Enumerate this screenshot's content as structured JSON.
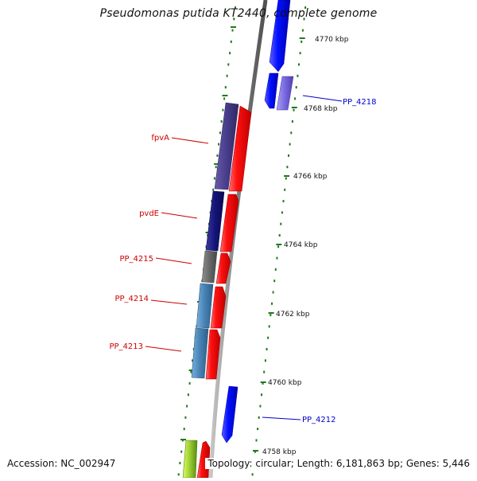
{
  "title": "Pseudomonas putida KT2440, complete genome",
  "accession": "Accession: NC_002947",
  "topology": "Topology: circular; Length: 6,181,863 bp; Genes: 5,446",
  "colors": {
    "backbone": "#888888",
    "ticks": "#1e7a1e",
    "forward_gene": "#ff0000",
    "reverse_gene": "#0000ff",
    "label_blue": "#0000cc",
    "label_red": "#cc0000"
  },
  "ticks": [
    {
      "label": "4770 kbp"
    },
    {
      "label": "4768 kbp"
    },
    {
      "label": "4766 kbp"
    },
    {
      "label": "4764 kbp"
    },
    {
      "label": "4762 kbp"
    },
    {
      "label": "4760 kbp"
    },
    {
      "label": "4758 kbp"
    }
  ],
  "gene_labels": [
    {
      "name": "PP_4218",
      "color": "blue"
    },
    {
      "name": "fpvA",
      "color": "red"
    },
    {
      "name": "pvdE",
      "color": "red"
    },
    {
      "name": "PP_4215",
      "color": "red"
    },
    {
      "name": "PP_4214",
      "color": "red"
    },
    {
      "name": "PP_4213",
      "color": "red"
    },
    {
      "name": "PP_4212",
      "color": "blue"
    }
  ]
}
